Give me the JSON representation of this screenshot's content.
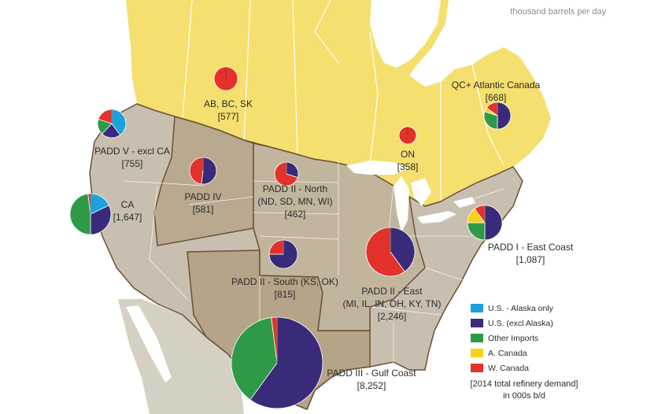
{
  "unit_label": "thousand barrels per day",
  "colors": {
    "canada_land": "#f5df6e",
    "us_land": "#c9bfb0",
    "padd_dark": "#b8a98f",
    "padd_mid": "#c2b59e",
    "mexico_land": "#d4d0c2",
    "water": "#ffffff",
    "border": "#6b5038"
  },
  "legend": [
    {
      "label": "U.S. - Alaska only",
      "color": "#1ba2dc"
    },
    {
      "label": "U.S. (excl Alaska)",
      "color": "#3a2a7a"
    },
    {
      "label": "Other Imports",
      "color": "#2e9a48"
    },
    {
      "label": "A. Canada",
      "color": "#f6d21a"
    },
    {
      "label": "W. Canada",
      "color": "#e3312b"
    }
  ],
  "note": {
    "line1": "[2014 total refinery demand]",
    "line2": "in 000s b/d"
  },
  "regions": [
    {
      "id": "absk",
      "name": "AB, BC, SK",
      "value": "[577]",
      "shares": [
        0,
        0,
        0,
        0,
        100
      ]
    },
    {
      "id": "on",
      "name": "ON",
      "value": "[358]",
      "shares": [
        0,
        0,
        0,
        0,
        100
      ]
    },
    {
      "id": "qc",
      "name": "QC+ Atlantic Canada",
      "value": "[668]",
      "shares": [
        0,
        50,
        30,
        5,
        15
      ]
    },
    {
      "id": "padd5",
      "name": "PADD V - excl CA",
      "value": "[755]",
      "shares": [
        40,
        22,
        18,
        0,
        20
      ]
    },
    {
      "id": "padd4",
      "name": "PADD IV",
      "value": "[581]",
      "shares": [
        0,
        52,
        0,
        0,
        48
      ]
    },
    {
      "id": "padd2n",
      "name": "PADD II - North",
      "name2": "(ND, SD, MN, WI)",
      "value": "[462]",
      "shares": [
        0,
        30,
        0,
        0,
        70
      ]
    },
    {
      "id": "ca",
      "name": "CA",
      "value": "[1,647]",
      "shares": [
        18,
        32,
        48,
        0,
        2
      ]
    },
    {
      "id": "padd2s",
      "name": "PADD II - South (KS, OK)",
      "value": "[815]",
      "shares": [
        0,
        75,
        0,
        0,
        25
      ]
    },
    {
      "id": "padd2e",
      "name": "PADD II - East",
      "name2": "(MI, IL, IN, OH, KY, TN)",
      "value": "[2,246]",
      "shares": [
        0,
        40,
        0,
        0,
        60
      ]
    },
    {
      "id": "padd1",
      "name": "PADD I - East Coast",
      "value": "[1,087]",
      "shares": [
        0,
        50,
        25,
        15,
        10
      ]
    },
    {
      "id": "padd3",
      "name": "PADD III - Gulf Coast",
      "value": "[8,252]",
      "shares": [
        0,
        60,
        38,
        0,
        2
      ]
    }
  ]
}
